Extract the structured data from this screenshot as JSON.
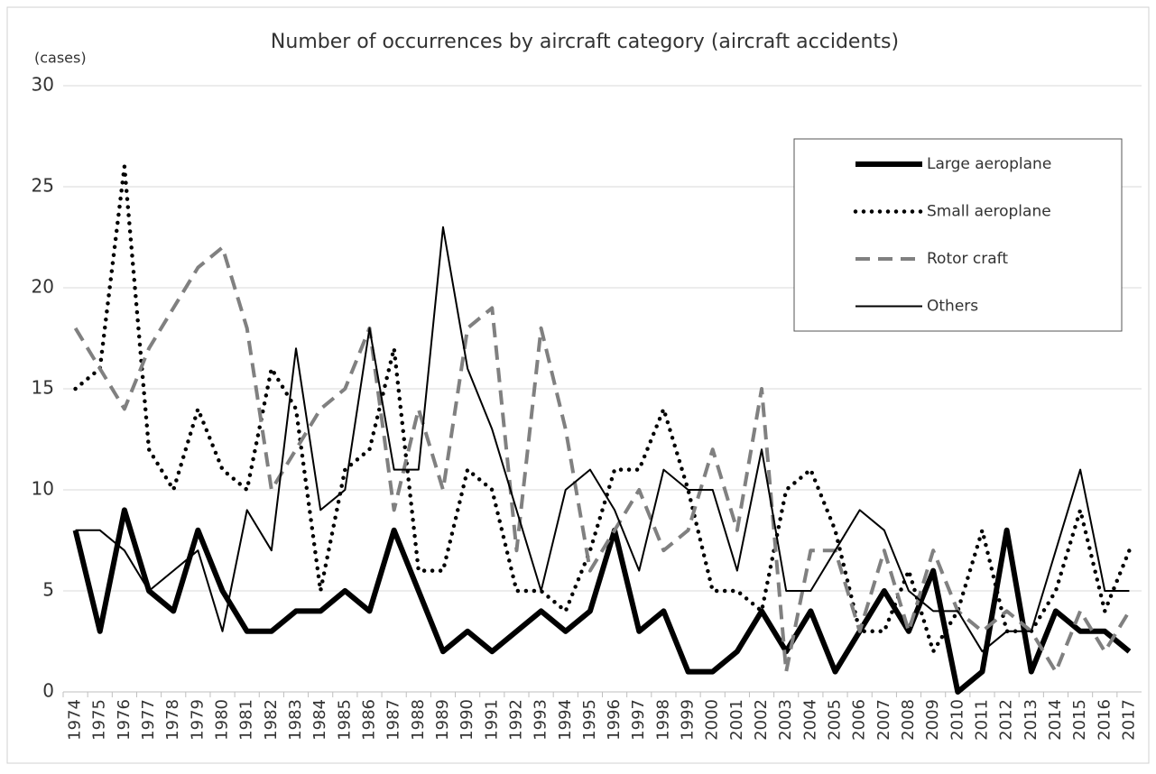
{
  "chart_data": {
    "type": "line",
    "title": "Number of occurrences by aircraft category (aircraft accidents)",
    "y_label": "(cases)",
    "categories": [
      "1974",
      "1975",
      "1976",
      "1977",
      "1978",
      "1979",
      "1980",
      "1981",
      "1982",
      "1983",
      "1984",
      "1985",
      "1986",
      "1987",
      "1988",
      "1989",
      "1990",
      "1991",
      "1992",
      "1993",
      "1994",
      "1995",
      "1996",
      "1997",
      "1998",
      "1999",
      "2000",
      "2001",
      "2002",
      "2003",
      "2004",
      "2005",
      "2006",
      "2007",
      "2008",
      "2009",
      "2010",
      "2011",
      "2012",
      "2013",
      "2014",
      "2015",
      "2016",
      "2017"
    ],
    "series": [
      {
        "name": "Large aeroplane",
        "color": "#000000",
        "style": "thick",
        "values": [
          8,
          3,
          9,
          5,
          4,
          8,
          5,
          3,
          3,
          4,
          4,
          5,
          4,
          8,
          5,
          2,
          3,
          2,
          3,
          4,
          3,
          4,
          8,
          3,
          4,
          1,
          1,
          2,
          4,
          2,
          4,
          1,
          3,
          5,
          3,
          6,
          0,
          1,
          8,
          1,
          4,
          3,
          3,
          2
        ]
      },
      {
        "name": "Small aeroplane",
        "color": "#000000",
        "style": "dotted",
        "values": [
          15,
          16,
          26,
          12,
          10,
          14,
          11,
          10,
          16,
          14,
          5,
          11,
          12,
          17,
          6,
          6,
          11,
          10,
          5,
          5,
          4,
          7,
          11,
          11,
          14,
          10,
          5,
          5,
          4,
          10,
          11,
          8,
          3,
          3,
          6,
          2,
          4,
          8,
          3,
          3,
          5,
          9,
          4,
          7
        ]
      },
      {
        "name": "Rotor craft",
        "color": "#808080",
        "style": "dashed",
        "values": [
          18,
          16,
          14,
          17,
          19,
          21,
          22,
          18,
          10,
          12,
          14,
          15,
          18,
          9,
          14,
          10,
          18,
          19,
          7,
          18,
          13,
          6,
          8,
          10,
          7,
          8,
          12,
          8,
          15,
          1,
          7,
          7,
          3,
          7,
          3,
          7,
          4,
          3,
          4,
          3,
          1,
          4,
          2,
          4
        ]
      },
      {
        "name": "Others",
        "color": "#000000",
        "style": "thin",
        "values": [
          8,
          8,
          7,
          5,
          6,
          7,
          3,
          9,
          7,
          17,
          9,
          10,
          18,
          11,
          11,
          23,
          16,
          13,
          9,
          5,
          10,
          11,
          9,
          6,
          11,
          10,
          10,
          6,
          12,
          5,
          5,
          7,
          9,
          8,
          5,
          4,
          4,
          2,
          3,
          3,
          7,
          11,
          5,
          5
        ]
      }
    ],
    "ylim": [
      0,
      30
    ],
    "yticks": [
      0,
      5,
      10,
      15,
      20,
      25,
      30
    ],
    "grid": true,
    "legend": "upper right"
  }
}
